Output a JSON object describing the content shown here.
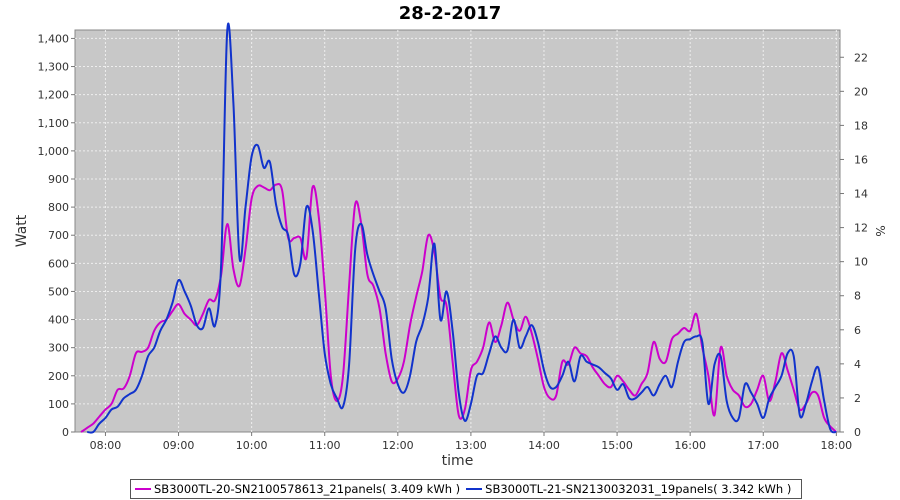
{
  "chart_data": {
    "type": "line",
    "title": "28-2-2017",
    "xlabel": "time",
    "ylabel": "Watt",
    "y2label": "%",
    "ylim": [
      0,
      1430
    ],
    "y2lim": [
      0,
      23.6
    ],
    "xlim": [
      "07:35",
      "18:03"
    ],
    "x_ticks": [
      "08:00",
      "09:00",
      "10:00",
      "11:00",
      "12:00",
      "13:00",
      "14:00",
      "15:00",
      "16:00",
      "17:00",
      "18:00"
    ],
    "y_ticks": [
      "0",
      "100",
      "200",
      "300",
      "400",
      "500",
      "600",
      "700",
      "800",
      "900",
      "1,000",
      "1,100",
      "1,200",
      "1,300",
      "1,400"
    ],
    "y2_ticks": [
      "0",
      "2",
      "4",
      "6",
      "8",
      "10",
      "12",
      "14",
      "16",
      "18",
      "20",
      "22"
    ],
    "grid": true,
    "legend_position": "bottom",
    "series": [
      {
        "name": "SB3000TL-20-SN2100578613_21panels( 3.409 kWh )",
        "color": "#cc00cc",
        "points": [
          [
            "07:40",
            0
          ],
          [
            "07:45",
            15
          ],
          [
            "07:50",
            30
          ],
          [
            "07:55",
            55
          ],
          [
            "08:00",
            80
          ],
          [
            "08:05",
            100
          ],
          [
            "08:10",
            150
          ],
          [
            "08:15",
            155
          ],
          [
            "08:20",
            200
          ],
          [
            "08:25",
            280
          ],
          [
            "08:30",
            285
          ],
          [
            "08:35",
            300
          ],
          [
            "08:40",
            360
          ],
          [
            "08:45",
            390
          ],
          [
            "08:50",
            400
          ],
          [
            "08:55",
            430
          ],
          [
            "09:00",
            455
          ],
          [
            "09:05",
            420
          ],
          [
            "09:10",
            400
          ],
          [
            "09:15",
            380
          ],
          [
            "09:20",
            420
          ],
          [
            "09:25",
            470
          ],
          [
            "09:30",
            470
          ],
          [
            "09:35",
            560
          ],
          [
            "09:40",
            740
          ],
          [
            "09:45",
            580
          ],
          [
            "09:50",
            520
          ],
          [
            "09:55",
            650
          ],
          [
            "10:00",
            830
          ],
          [
            "10:05",
            875
          ],
          [
            "10:10",
            870
          ],
          [
            "10:15",
            860
          ],
          [
            "10:20",
            880
          ],
          [
            "10:25",
            860
          ],
          [
            "10:30",
            690
          ],
          [
            "10:35",
            690
          ],
          [
            "10:40",
            690
          ],
          [
            "10:45",
            620
          ],
          [
            "10:50",
            870
          ],
          [
            "10:55",
            770
          ],
          [
            "11:00",
            510
          ],
          [
            "11:05",
            200
          ],
          [
            "11:10",
            110
          ],
          [
            "11:15",
            200
          ],
          [
            "11:20",
            520
          ],
          [
            "11:25",
            810
          ],
          [
            "11:30",
            740
          ],
          [
            "11:35",
            560
          ],
          [
            "11:40",
            520
          ],
          [
            "11:45",
            440
          ],
          [
            "11:50",
            280
          ],
          [
            "11:55",
            180
          ],
          [
            "12:00",
            190
          ],
          [
            "12:05",
            250
          ],
          [
            "12:10",
            380
          ],
          [
            "12:15",
            480
          ],
          [
            "12:20",
            570
          ],
          [
            "12:25",
            700
          ],
          [
            "12:30",
            640
          ],
          [
            "12:35",
            480
          ],
          [
            "12:40",
            450
          ],
          [
            "12:45",
            250
          ],
          [
            "12:50",
            60
          ],
          [
            "12:55",
            80
          ],
          [
            "13:00",
            220
          ],
          [
            "13:05",
            250
          ],
          [
            "13:10",
            300
          ],
          [
            "13:15",
            390
          ],
          [
            "13:20",
            320
          ],
          [
            "13:25",
            380
          ],
          [
            "13:30",
            460
          ],
          [
            "13:35",
            400
          ],
          [
            "13:40",
            360
          ],
          [
            "13:45",
            410
          ],
          [
            "13:50",
            350
          ],
          [
            "13:55",
            260
          ],
          [
            "14:00",
            160
          ],
          [
            "14:05",
            120
          ],
          [
            "14:10",
            130
          ],
          [
            "14:15",
            250
          ],
          [
            "14:20",
            240
          ],
          [
            "14:25",
            300
          ],
          [
            "14:30",
            280
          ],
          [
            "14:35",
            270
          ],
          [
            "14:40",
            230
          ],
          [
            "14:45",
            200
          ],
          [
            "14:50",
            170
          ],
          [
            "14:55",
            160
          ],
          [
            "15:00",
            200
          ],
          [
            "15:05",
            180
          ],
          [
            "15:10",
            150
          ],
          [
            "15:15",
            130
          ],
          [
            "15:20",
            170
          ],
          [
            "15:25",
            210
          ],
          [
            "15:30",
            320
          ],
          [
            "15:35",
            260
          ],
          [
            "15:40",
            250
          ],
          [
            "15:45",
            330
          ],
          [
            "15:50",
            350
          ],
          [
            "15:55",
            370
          ],
          [
            "16:00",
            360
          ],
          [
            "16:05",
            420
          ],
          [
            "16:10",
            300
          ],
          [
            "16:15",
            200
          ],
          [
            "16:20",
            60
          ],
          [
            "16:25",
            300
          ],
          [
            "16:30",
            200
          ],
          [
            "16:35",
            150
          ],
          [
            "16:40",
            130
          ],
          [
            "16:45",
            90
          ],
          [
            "16:50",
            100
          ],
          [
            "16:55",
            150
          ],
          [
            "17:00",
            200
          ],
          [
            "17:05",
            110
          ],
          [
            "17:10",
            180
          ],
          [
            "17:15",
            280
          ],
          [
            "17:20",
            220
          ],
          [
            "17:25",
            150
          ],
          [
            "17:30",
            80
          ],
          [
            "17:35",
            100
          ],
          [
            "17:40",
            140
          ],
          [
            "17:45",
            130
          ],
          [
            "17:50",
            50
          ],
          [
            "17:55",
            20
          ],
          [
            "18:00",
            0
          ]
        ]
      },
      {
        "name": "SB3000TL-21-SN2130032031_19panels( 3.342 kWh )",
        "color": "#1133cc",
        "points": [
          [
            "07:45",
            0
          ],
          [
            "07:50",
            0
          ],
          [
            "07:55",
            30
          ],
          [
            "08:00",
            50
          ],
          [
            "08:05",
            80
          ],
          [
            "08:10",
            90
          ],
          [
            "08:15",
            120
          ],
          [
            "08:20",
            135
          ],
          [
            "08:25",
            150
          ],
          [
            "08:30",
            200
          ],
          [
            "08:35",
            270
          ],
          [
            "08:40",
            300
          ],
          [
            "08:45",
            360
          ],
          [
            "08:50",
            400
          ],
          [
            "08:55",
            460
          ],
          [
            "09:00",
            540
          ],
          [
            "09:05",
            500
          ],
          [
            "09:10",
            450
          ],
          [
            "09:15",
            380
          ],
          [
            "09:20",
            370
          ],
          [
            "09:25",
            440
          ],
          [
            "09:30",
            380
          ],
          [
            "09:35",
            600
          ],
          [
            "09:40",
            1430
          ],
          [
            "09:45",
            1170
          ],
          [
            "09:50",
            620
          ],
          [
            "09:55",
            800
          ],
          [
            "10:00",
            980
          ],
          [
            "10:05",
            1020
          ],
          [
            "10:10",
            940
          ],
          [
            "10:15",
            960
          ],
          [
            "10:20",
            810
          ],
          [
            "10:25",
            730
          ],
          [
            "10:30",
            700
          ],
          [
            "10:35",
            560
          ],
          [
            "10:40",
            600
          ],
          [
            "10:45",
            800
          ],
          [
            "10:50",
            720
          ],
          [
            "10:55",
            500
          ],
          [
            "11:00",
            280
          ],
          [
            "11:05",
            170
          ],
          [
            "11:10",
            120
          ],
          [
            "11:15",
            90
          ],
          [
            "11:20",
            240
          ],
          [
            "11:25",
            650
          ],
          [
            "11:30",
            740
          ],
          [
            "11:35",
            630
          ],
          [
            "11:40",
            560
          ],
          [
            "11:45",
            500
          ],
          [
            "11:50",
            440
          ],
          [
            "11:55",
            260
          ],
          [
            "12:00",
            170
          ],
          [
            "12:05",
            140
          ],
          [
            "12:10",
            200
          ],
          [
            "12:15",
            320
          ],
          [
            "12:20",
            380
          ],
          [
            "12:25",
            480
          ],
          [
            "12:30",
            670
          ],
          [
            "12:35",
            400
          ],
          [
            "12:40",
            500
          ],
          [
            "12:45",
            360
          ],
          [
            "12:50",
            140
          ],
          [
            "12:55",
            40
          ],
          [
            "13:00",
            100
          ],
          [
            "13:05",
            200
          ],
          [
            "13:10",
            210
          ],
          [
            "13:15",
            280
          ],
          [
            "13:20",
            340
          ],
          [
            "13:25",
            300
          ],
          [
            "13:30",
            290
          ],
          [
            "13:35",
            400
          ],
          [
            "13:40",
            300
          ],
          [
            "13:45",
            340
          ],
          [
            "13:50",
            380
          ],
          [
            "13:55",
            320
          ],
          [
            "14:00",
            220
          ],
          [
            "14:05",
            160
          ],
          [
            "14:10",
            160
          ],
          [
            "14:15",
            200
          ],
          [
            "14:20",
            250
          ],
          [
            "14:25",
            180
          ],
          [
            "14:30",
            270
          ],
          [
            "14:35",
            250
          ],
          [
            "14:40",
            240
          ],
          [
            "14:45",
            230
          ],
          [
            "14:50",
            210
          ],
          [
            "14:55",
            190
          ],
          [
            "15:00",
            150
          ],
          [
            "15:05",
            170
          ],
          [
            "15:10",
            120
          ],
          [
            "15:15",
            120
          ],
          [
            "15:20",
            140
          ],
          [
            "15:25",
            160
          ],
          [
            "15:30",
            130
          ],
          [
            "15:35",
            170
          ],
          [
            "15:40",
            200
          ],
          [
            "15:45",
            160
          ],
          [
            "15:50",
            250
          ],
          [
            "15:55",
            320
          ],
          [
            "16:00",
            330
          ],
          [
            "16:05",
            340
          ],
          [
            "16:10",
            320
          ],
          [
            "16:15",
            100
          ],
          [
            "16:20",
            240
          ],
          [
            "16:25",
            270
          ],
          [
            "16:30",
            110
          ],
          [
            "16:35",
            50
          ],
          [
            "16:40",
            50
          ],
          [
            "16:45",
            170
          ],
          [
            "16:50",
            140
          ],
          [
            "16:55",
            100
          ],
          [
            "17:00",
            50
          ],
          [
            "17:05",
            120
          ],
          [
            "17:10",
            160
          ],
          [
            "17:15",
            200
          ],
          [
            "17:20",
            280
          ],
          [
            "17:25",
            270
          ],
          [
            "17:30",
            60
          ],
          [
            "17:35",
            100
          ],
          [
            "17:40",
            180
          ],
          [
            "17:45",
            230
          ],
          [
            "17:50",
            110
          ],
          [
            "17:55",
            10
          ],
          [
            "18:00",
            0
          ]
        ]
      }
    ]
  }
}
